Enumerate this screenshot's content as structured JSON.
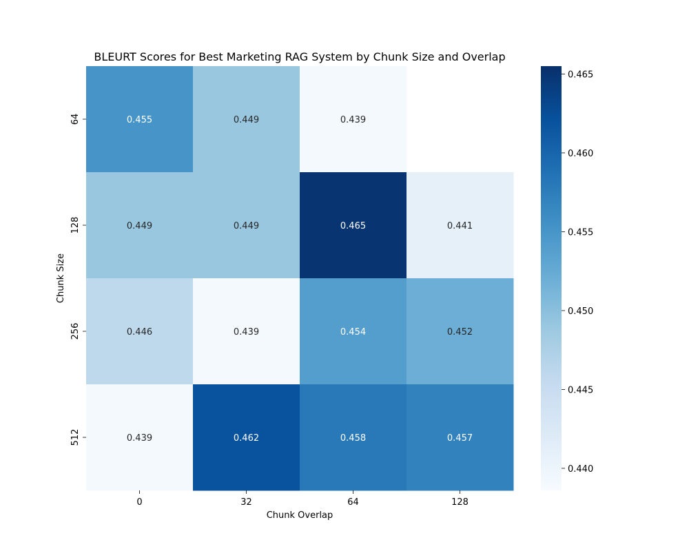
{
  "chart_data": {
    "type": "heatmap",
    "title": "BLEURT Scores for Best Marketing RAG System by Chunk Size and Overlap",
    "xlabel": "Chunk Overlap",
    "ylabel": "Chunk Size",
    "x_categories": [
      "0",
      "32",
      "64",
      "128"
    ],
    "y_categories": [
      "64",
      "128",
      "256",
      "512"
    ],
    "values": [
      [
        0.455,
        0.449,
        0.439,
        null
      ],
      [
        0.449,
        0.449,
        0.465,
        0.441
      ],
      [
        0.446,
        0.439,
        0.454,
        0.452
      ],
      [
        0.439,
        0.462,
        0.458,
        0.457
      ]
    ],
    "value_labels": [
      [
        "0.455",
        "0.449",
        "0.439",
        ""
      ],
      [
        "0.449",
        "0.449",
        "0.465",
        "0.441"
      ],
      [
        "0.446",
        "0.439",
        "0.454",
        "0.452"
      ],
      [
        "0.439",
        "0.462",
        "0.458",
        "0.457"
      ]
    ],
    "colormap": "Blues",
    "color_range": [
      0.4386,
      0.4655
    ],
    "colorbar_ticks": [
      "0.440",
      "0.445",
      "0.450",
      "0.455",
      "0.460",
      "0.465"
    ],
    "colorbar_tick_values": [
      0.44,
      0.445,
      0.45,
      0.455,
      0.46,
      0.465
    ],
    "legend_position": "right",
    "grid": false
  }
}
